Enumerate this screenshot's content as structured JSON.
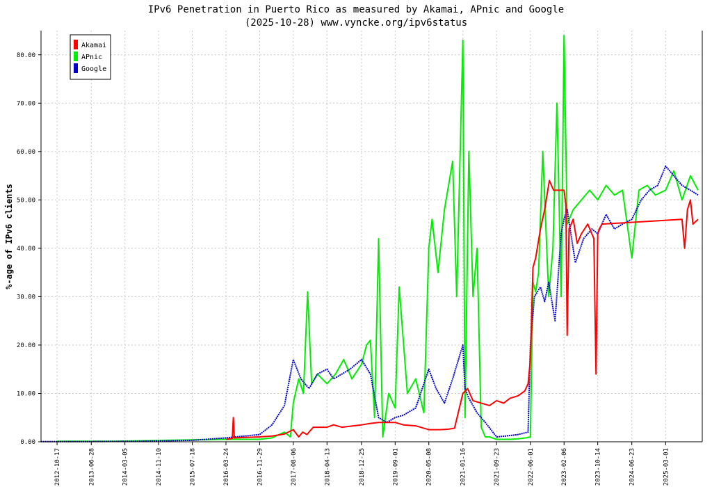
{
  "chart_data": {
    "type": "line",
    "title": "IPv6 Penetration in Puerto Rico as measured by Akamai, APnic and Google",
    "subtitle": "(2025-10-28) www.vyncke.org/ipv6status",
    "xlabel": "",
    "ylabel": "%-age of IPv6 clients",
    "ylim": [
      0,
      85
    ],
    "xlim": [
      "2012-06-20",
      "2025-11-28"
    ],
    "grid": true,
    "legend_position": "top-left",
    "x_tick_labels": [
      "2012-10-17",
      "2013-06-28",
      "2014-03-05",
      "2014-11-10",
      "2015-07-18",
      "2016-03-24",
      "2016-11-29",
      "2017-08-06",
      "2018-04-13",
      "2018-12-25",
      "2019-09-01",
      "2020-05-08",
      "2021-01-16",
      "2021-09-23",
      "2022-06-01",
      "2023-02-06",
      "2023-10-14",
      "2024-06-23",
      "2025-03-01"
    ],
    "y_ticks": [
      0,
      10,
      20,
      30,
      40,
      50,
      60,
      70,
      80
    ],
    "y_tick_labels": [
      "0.00",
      "10.00",
      "20.00",
      "30.00",
      "40.00",
      "50.00",
      "60.00",
      "70.00",
      "80.00"
    ],
    "series": [
      {
        "name": "Akamai",
        "color": "#ff0000",
        "x": [
          "2016-03-24",
          "2016-05-10",
          "2016-05-18",
          "2016-05-25",
          "2016-11-29",
          "2017-03-01",
          "2017-06-01",
          "2017-08-06",
          "2017-09-15",
          "2017-10-15",
          "2017-11-15",
          "2018-01-01",
          "2018-04-13",
          "2018-06-01",
          "2018-08-01",
          "2018-12-25",
          "2019-03-01",
          "2019-05-01",
          "2019-09-01",
          "2019-11-01",
          "2020-02-01",
          "2020-05-08",
          "2020-08-01",
          "2020-10-01",
          "2020-11-15",
          "2021-01-16",
          "2021-02-20",
          "2021-04-01",
          "2021-06-01",
          "2021-08-01",
          "2021-09-23",
          "2021-11-15",
          "2022-01-01",
          "2022-03-01",
          "2022-04-20",
          "2022-05-15",
          "2022-06-01",
          "2022-06-20",
          "2022-07-10",
          "2022-08-15",
          "2022-09-15",
          "2022-10-20",
          "2022-11-20",
          "2023-01-01",
          "2023-02-06",
          "2023-02-20",
          "2023-03-01",
          "2023-03-15",
          "2023-04-15",
          "2023-05-15",
          "2023-06-15",
          "2023-08-01",
          "2023-09-15",
          "2023-10-01",
          "2023-10-14",
          "2023-10-25",
          "2023-11-15",
          "2025-07-01",
          "2025-07-20",
          "2025-08-10",
          "2025-09-01",
          "2025-09-20",
          "2025-10-28"
        ],
        "values": [
          0.5,
          0.7,
          5.0,
          0.8,
          1.0,
          1.2,
          1.6,
          2.5,
          1.0,
          2.0,
          1.5,
          3.0,
          3.0,
          3.5,
          3.0,
          3.5,
          3.8,
          4.0,
          4.0,
          3.5,
          3.3,
          2.5,
          2.5,
          2.6,
          2.8,
          10.0,
          11.0,
          8.5,
          8.0,
          7.5,
          8.5,
          8.0,
          9.0,
          9.5,
          10.5,
          12.0,
          17.0,
          36.0,
          38.0,
          44.0,
          48.0,
          54.0,
          52.0,
          52.0,
          52.0,
          49.0,
          22.0,
          44.0,
          46.0,
          41.0,
          43.0,
          45.0,
          42.0,
          14.0,
          43.0,
          44.0,
          45.0,
          46.0,
          40.0,
          48.0,
          50.0,
          45.0,
          46.0
        ]
      },
      {
        "name": "APnic",
        "color": "#00ee00",
        "x": [
          "2012-10-17",
          "2014-01-01",
          "2014-06-01",
          "2015-01-01",
          "2015-07-18",
          "2016-03-24",
          "2016-11-29",
          "2017-03-01",
          "2017-06-01",
          "2017-07-15",
          "2017-08-06",
          "2017-09-15",
          "2017-10-20",
          "2017-11-20",
          "2017-12-20",
          "2018-02-01",
          "2018-04-13",
          "2018-06-15",
          "2018-08-15",
          "2018-10-15",
          "2018-12-25",
          "2019-02-01",
          "2019-03-01",
          "2019-04-01",
          "2019-05-01",
          "2019-06-01",
          "2019-07-15",
          "2019-09-01",
          "2019-10-01",
          "2019-12-01",
          "2020-02-01",
          "2020-04-01",
          "2020-05-08",
          "2020-06-01",
          "2020-07-15",
          "2020-09-01",
          "2020-11-01",
          "2020-12-01",
          "2021-01-16",
          "2021-02-01",
          "2021-03-01",
          "2021-04-01",
          "2021-05-01",
          "2021-06-01",
          "2021-07-01",
          "2021-08-01",
          "2021-09-23",
          "2021-11-01",
          "2022-01-01",
          "2022-03-01",
          "2022-05-01",
          "2022-06-01",
          "2022-06-20",
          "2022-07-10",
          "2022-08-01",
          "2022-09-01",
          "2022-10-15",
          "2022-11-15",
          "2022-12-15",
          "2023-01-15",
          "2023-02-06",
          "2023-03-01",
          "2023-04-15",
          "2023-06-15",
          "2023-08-15",
          "2023-10-14",
          "2023-12-15",
          "2024-02-15",
          "2024-04-15",
          "2024-06-23",
          "2024-08-15",
          "2024-10-15",
          "2024-12-15",
          "2025-03-01",
          "2025-05-01",
          "2025-07-01",
          "2025-09-01",
          "2025-10-28"
        ],
        "values": [
          0.1,
          0.1,
          0.2,
          0.3,
          0.4,
          0.5,
          0.5,
          0.8,
          2.0,
          1.0,
          8.0,
          13.0,
          10.0,
          31.0,
          12.0,
          14.0,
          12.0,
          14.0,
          17.0,
          13.0,
          16.0,
          20.0,
          21.0,
          5.0,
          42.0,
          1.0,
          10.0,
          7.0,
          32.0,
          10.0,
          13.0,
          6.0,
          40.0,
          46.0,
          35.0,
          48.0,
          58.0,
          30.0,
          83.0,
          5.0,
          60.0,
          30.0,
          40.0,
          3.0,
          1.0,
          1.0,
          0.5,
          0.5,
          0.5,
          0.6,
          0.8,
          1.0,
          33.0,
          31.0,
          35.0,
          60.0,
          30.0,
          40.0,
          70.0,
          30.0,
          84.0,
          45.0,
          48.0,
          50.0,
          52.0,
          50.0,
          53.0,
          51.0,
          52.0,
          38.0,
          52.0,
          53.0,
          51.0,
          52.0,
          56.0,
          50.0,
          55.0,
          52.0
        ]
      },
      {
        "name": "Google",
        "color": "#0000cc",
        "x": [
          "2012-06-20",
          "2013-06-28",
          "2014-06-01",
          "2015-07-18",
          "2016-03-24",
          "2016-11-29",
          "2017-03-01",
          "2017-06-01",
          "2017-08-06",
          "2017-10-01",
          "2017-12-01",
          "2018-02-01",
          "2018-04-13",
          "2018-06-01",
          "2018-08-01",
          "2018-10-01",
          "2018-12-25",
          "2019-03-01",
          "2019-05-01",
          "2019-07-01",
          "2019-09-01",
          "2019-11-01",
          "2020-02-01",
          "2020-05-08",
          "2020-07-01",
          "2020-09-01",
          "2020-11-01",
          "2021-01-16",
          "2021-02-01",
          "2021-03-01",
          "2021-05-01",
          "2021-07-01",
          "2021-09-23",
          "2021-12-01",
          "2022-03-01",
          "2022-05-15",
          "2022-06-01",
          "2022-07-01",
          "2022-08-15",
          "2022-09-15",
          "2022-10-15",
          "2022-12-01",
          "2023-01-15",
          "2023-02-06",
          "2023-03-01",
          "2023-05-01",
          "2023-07-01",
          "2023-09-01",
          "2023-10-14",
          "2023-12-15",
          "2024-02-15",
          "2024-04-15",
          "2024-06-23",
          "2024-09-01",
          "2024-11-01",
          "2025-01-01",
          "2025-03-01",
          "2025-05-01",
          "2025-07-01",
          "2025-09-01",
          "2025-10-28"
        ],
        "values": [
          0.05,
          0.05,
          0.1,
          0.3,
          0.8,
          1.5,
          3.5,
          7.5,
          17.0,
          13.0,
          11.0,
          14.0,
          15.0,
          13.0,
          14.0,
          15.0,
          17.0,
          14.0,
          5.0,
          4.0,
          5.0,
          5.5,
          7.0,
          15.0,
          11.0,
          8.0,
          13.0,
          20.0,
          11.0,
          9.0,
          6.0,
          4.0,
          1.0,
          1.2,
          1.5,
          2.0,
          20.0,
          30.0,
          32.0,
          29.0,
          33.0,
          25.0,
          43.0,
          46.0,
          48.0,
          37.0,
          42.0,
          44.0,
          43.0,
          47.0,
          44.0,
          45.0,
          46.0,
          50.0,
          52.0,
          53.0,
          57.0,
          55.0,
          53.0,
          52.0,
          51.0
        ]
      }
    ]
  }
}
